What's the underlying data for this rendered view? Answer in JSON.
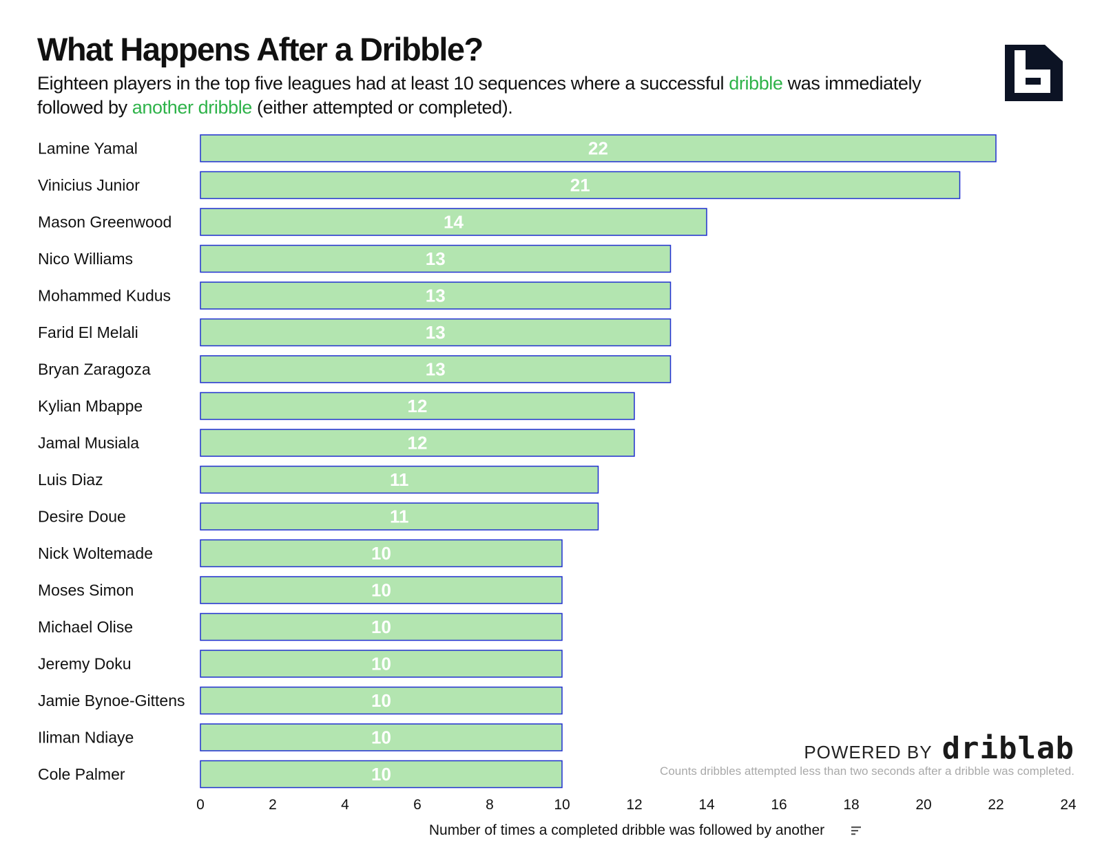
{
  "header": {
    "title": "What Happens After a Dribble?",
    "subtitle_part1": "Eighteen players in the top five leagues had at least 10 sequences where a successful ",
    "subtitle_hl1": "dribble",
    "subtitle_part2": " was immediately followed by ",
    "subtitle_hl2": "another dribble",
    "subtitle_part3": " (either attempted or completed)."
  },
  "footer": {
    "powered_by": "POWERED BY",
    "brand": "driblab",
    "note": "Counts dribbles attempted less than two seconds after a dribble was completed."
  },
  "colors": {
    "bar_fill": "#b3e5b0",
    "bar_stroke": "#1f2fd0",
    "bar_label": "#ffffff",
    "highlight": "#2fb34a",
    "logo": "#0c1324"
  },
  "chart_data": {
    "type": "bar",
    "orientation": "horizontal",
    "categories": [
      "Lamine Yamal",
      "Vinicius Junior",
      "Mason Greenwood",
      "Nico Williams",
      "Mohammed Kudus",
      "Farid El Melali",
      "Bryan Zaragoza",
      "Kylian Mbappe",
      "Jamal Musiala",
      "Luis Diaz",
      "Desire Doue",
      "Nick Woltemade",
      "Moses Simon",
      "Michael Olise",
      "Jeremy Doku",
      "Jamie Bynoe-Gittens",
      "Iliman Ndiaye",
      "Cole Palmer"
    ],
    "values": [
      22,
      21,
      14,
      13,
      13,
      13,
      13,
      12,
      12,
      11,
      11,
      10,
      10,
      10,
      10,
      10,
      10,
      10
    ],
    "xlabel": "Number of times a completed dribble was followed by another",
    "ylabel": "",
    "xlim": [
      0,
      24
    ],
    "xticks": [
      0,
      2,
      4,
      6,
      8,
      10,
      12,
      14,
      16,
      18,
      20,
      22,
      24
    ],
    "grid": false,
    "data_labels": true
  }
}
